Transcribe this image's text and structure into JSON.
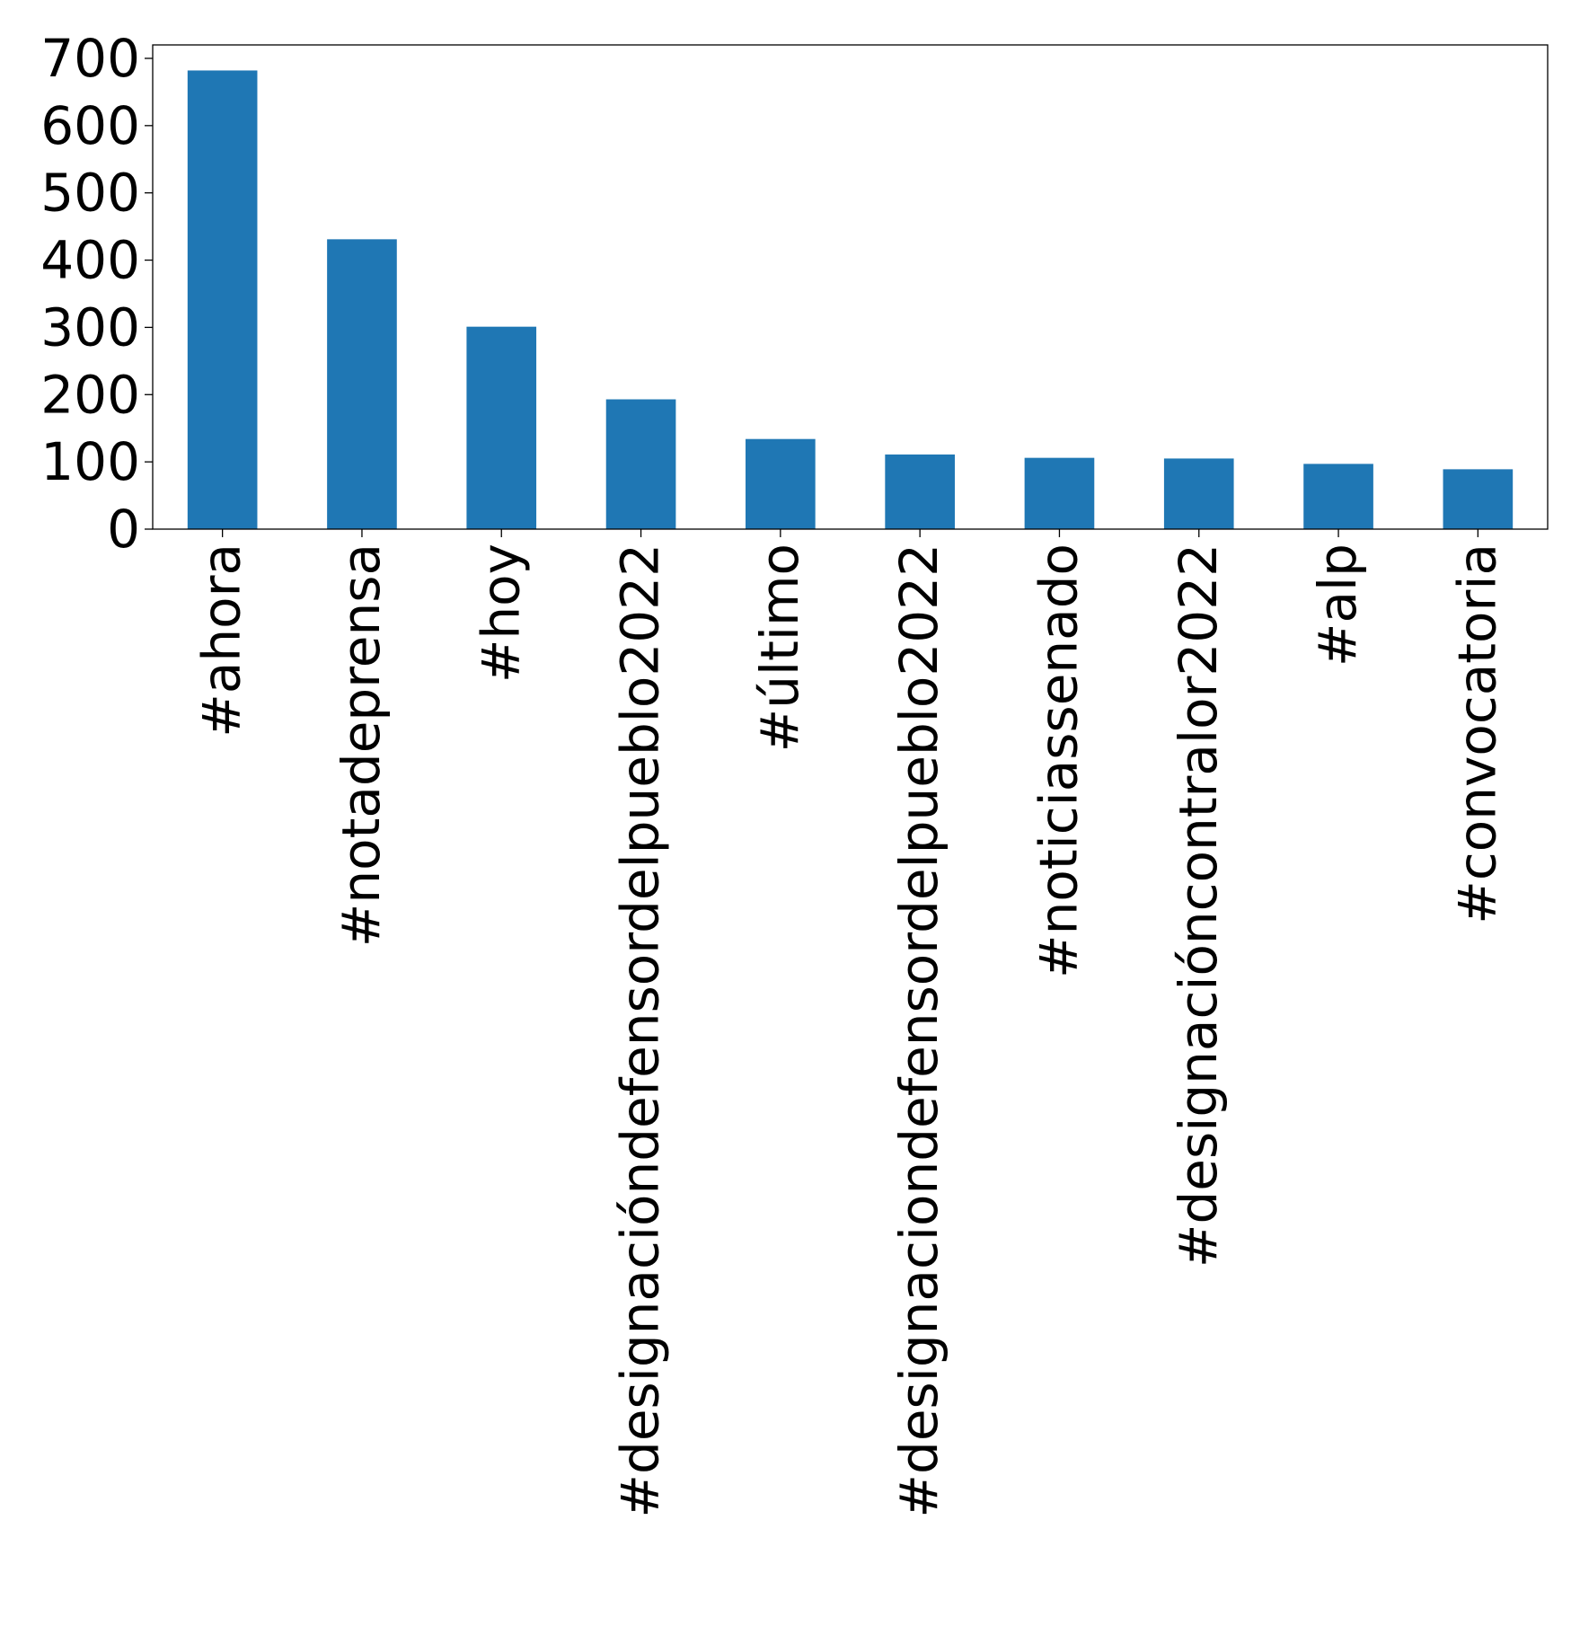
{
  "chart_data": {
    "type": "bar",
    "title": "",
    "xlabel": "",
    "ylabel": "",
    "categories": [
      "#ahora",
      "#notadeprensa",
      "#hoy",
      "#designacióndefensordelpueblo2022",
      "#último",
      "#designaciondefensordelpueblo2022",
      "#noticiassenado",
      "#designacióncontralor2022",
      "#alp",
      "#convocatoria"
    ],
    "values": [
      682,
      431,
      301,
      193,
      134,
      111,
      106,
      105,
      97,
      89
    ],
    "ylim": [
      0,
      720
    ],
    "yticks": [
      0,
      100,
      200,
      300,
      400,
      500,
      600,
      700
    ],
    "grid": false,
    "legend": "none",
    "bar_color": "#1f77b4"
  }
}
